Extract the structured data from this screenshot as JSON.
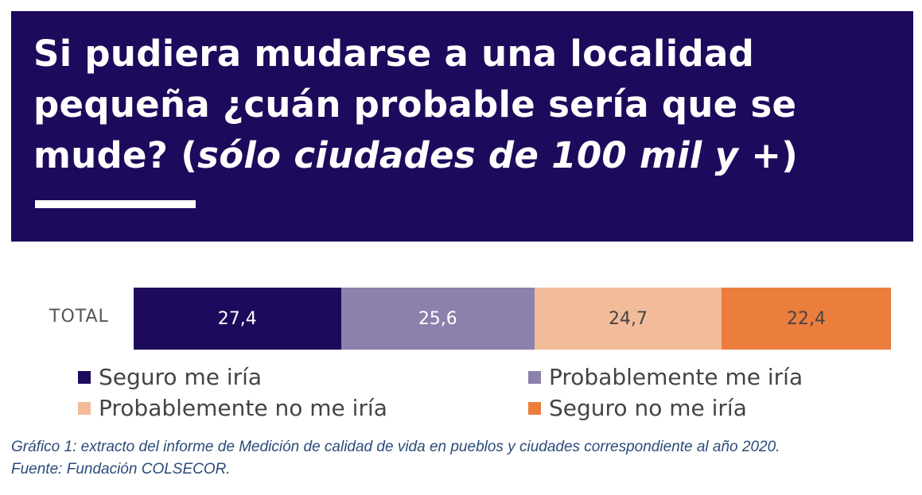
{
  "header": {
    "title_main": "Si pudiera mudarse a una localidad pequeña ¿cuán probable sería que se mude? (",
    "title_italic": "sólo ciudades de 100 mil y +",
    "title_close": ")"
  },
  "chart_data": {
    "type": "bar",
    "orientation": "horizontal-stacked",
    "categories": [
      "TOTAL"
    ],
    "series": [
      {
        "name": "Seguro me iría",
        "values": [
          27.4
        ],
        "label": "27,4",
        "color": "#1e0a5c",
        "text_color": "#ffffff"
      },
      {
        "name": "Probablemente me iría",
        "values": [
          25.6
        ],
        "label": "25,6",
        "color": "#8c80ad",
        "text_color": "#ffffff"
      },
      {
        "name": "Probablemente no me iría",
        "values": [
          24.7
        ],
        "label": "24,7",
        "color": "#f2bc9a",
        "text_color": "#444444"
      },
      {
        "name": "Seguro no me iría",
        "values": [
          22.4
        ],
        "label": "22,4",
        "color": "#eb7e3d",
        "text_color": "#444444"
      }
    ],
    "title": "Si pudiera mudarse a una localidad pequeña ¿cuán probable sería que se mude? (sólo ciudades de 100 mil y +)",
    "xlabel": "",
    "ylabel": "",
    "xlim": [
      0,
      100.1
    ],
    "legend": "bottom"
  },
  "caption": {
    "line1": "Gráfico 1: extracto del informe de Medición de calidad de vida en pueblos y ciudades correspondiente al año 2020.",
    "line2": "Fuente: Fundación COLSECOR."
  }
}
